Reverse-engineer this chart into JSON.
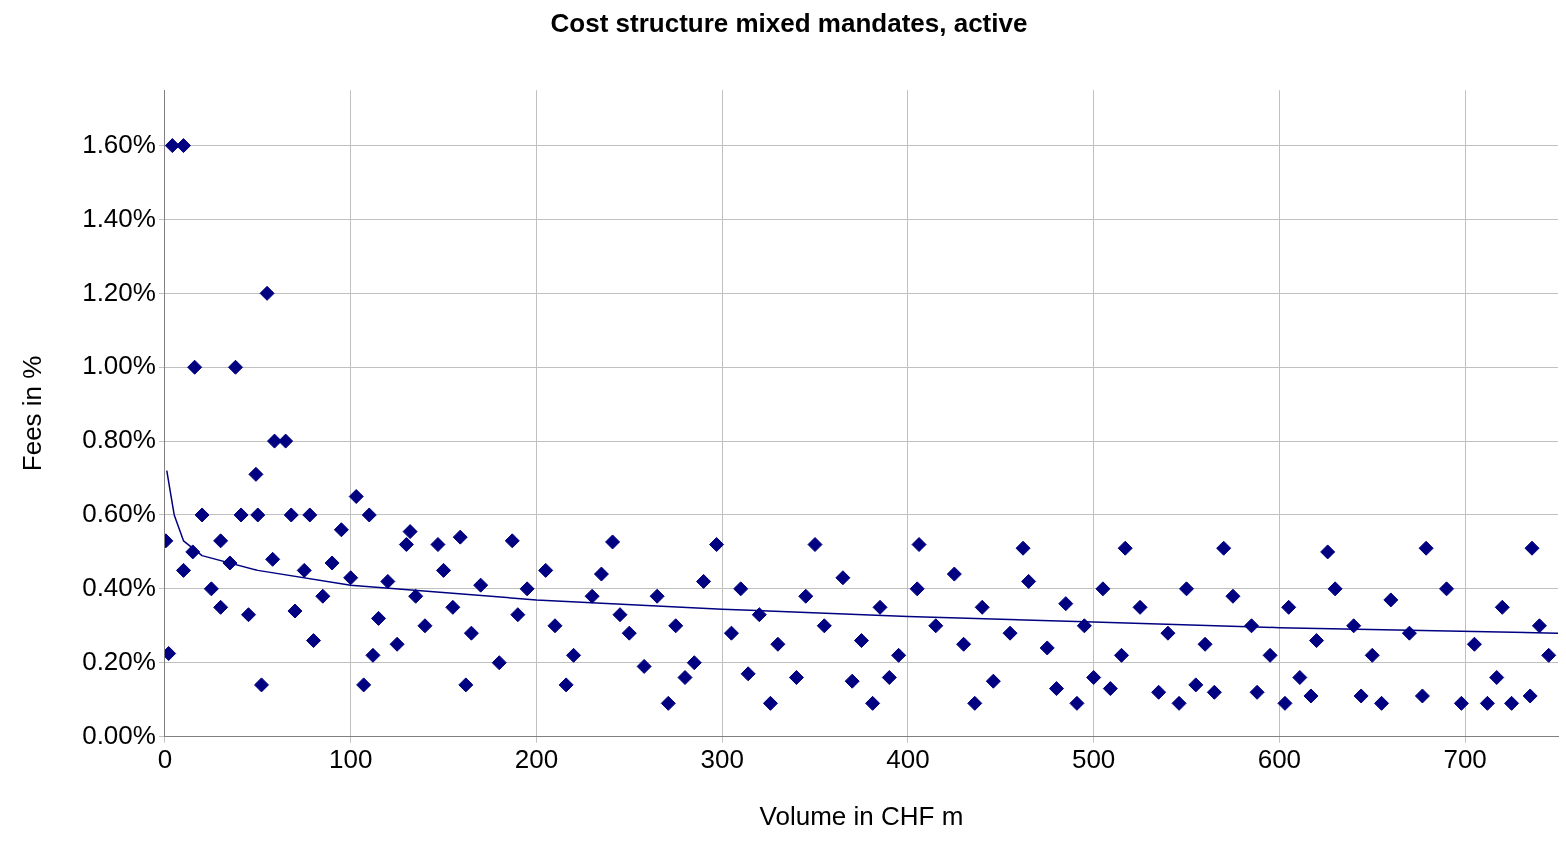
{
  "chart_data": {
    "type": "scatter",
    "title": "Cost structure mixed mandates, active",
    "xlabel": "Volume in CHF m",
    "ylabel": "Fees in %",
    "xlim": [
      0,
      750
    ],
    "xticks": [
      0,
      100,
      200,
      300,
      400,
      500,
      600,
      700
    ],
    "ylim": [
      0,
      1.75
    ],
    "yticks": [
      {
        "value": 0,
        "label": "0.00%"
      },
      {
        "value": 0.2,
        "label": "0.20%"
      },
      {
        "value": 0.4,
        "label": "0.40%"
      },
      {
        "value": 0.6,
        "label": "0.60%"
      },
      {
        "value": 0.8,
        "label": "0.80%"
      },
      {
        "value": 1.0,
        "label": "1.00%"
      },
      {
        "value": 1.2,
        "label": "1.20%"
      },
      {
        "value": 1.4,
        "label": "1.40%"
      },
      {
        "value": 1.6,
        "label": "1.60%"
      }
    ],
    "grid": true,
    "legend": false,
    "series": [
      {
        "type": "scatter",
        "color": "#000080",
        "marker": "diamond",
        "x": [
          4,
          10,
          16,
          38,
          55,
          59,
          65,
          49,
          103,
          0.5,
          2,
          52,
          107,
          162,
          271,
          326,
          381,
          436,
          491,
          546,
          603,
          655,
          698,
          712,
          725,
          132,
          159,
          187,
          241,
          297,
          350,
          406,
          462,
          517,
          570,
          626,
          679,
          736,
          216,
          280,
          314,
          340,
          370,
          390,
          446,
          480,
          500,
          509,
          535,
          555,
          565,
          588,
          611,
          617,
          644,
          677,
          717,
          735,
          20,
          41,
          50,
          68,
          78,
          110,
          30,
          95,
          130,
          147,
          10,
          15,
          25,
          30,
          35,
          45,
          58,
          70,
          75,
          80,
          85,
          90,
          100,
          112,
          115,
          120,
          125,
          135,
          140,
          150,
          155,
          165,
          170,
          180,
          190,
          195,
          205,
          210,
          220,
          230,
          235,
          245,
          250,
          258,
          265,
          275,
          285,
          290,
          305,
          310,
          320,
          330,
          345,
          355,
          365,
          375,
          385,
          395,
          405,
          415,
          425,
          430,
          440,
          455,
          465,
          475,
          485,
          495,
          505,
          515,
          525,
          540,
          550,
          560,
          575,
          585,
          595,
          605,
          620,
          630,
          640,
          650,
          660,
          670,
          690,
          705,
          720,
          740,
          745
        ],
        "values": [
          1.6,
          1.6,
          1.0,
          1.0,
          1.2,
          0.8,
          0.8,
          0.71,
          0.65,
          0.53,
          0.225,
          0.14,
          0.14,
          0.14,
          0.09,
          0.09,
          0.09,
          0.09,
          0.09,
          0.09,
          0.09,
          0.09,
          0.09,
          0.09,
          0.09,
          0.555,
          0.54,
          0.53,
          0.527,
          0.52,
          0.52,
          0.52,
          0.51,
          0.51,
          0.51,
          0.5,
          0.51,
          0.51,
          0.14,
          0.16,
          0.17,
          0.16,
          0.15,
          0.16,
          0.15,
          0.13,
          0.16,
          0.13,
          0.12,
          0.14,
          0.12,
          0.12,
          0.16,
          0.11,
          0.11,
          0.11,
          0.16,
          0.11,
          0.6,
          0.6,
          0.6,
          0.6,
          0.6,
          0.6,
          0.53,
          0.56,
          0.52,
          0.52,
          0.45,
          0.5,
          0.4,
          0.35,
          0.47,
          0.33,
          0.48,
          0.34,
          0.45,
          0.26,
          0.38,
          0.47,
          0.43,
          0.22,
          0.32,
          0.42,
          0.25,
          0.38,
          0.3,
          0.45,
          0.35,
          0.28,
          0.41,
          0.2,
          0.33,
          0.4,
          0.45,
          0.3,
          0.22,
          0.38,
          0.44,
          0.33,
          0.28,
          0.19,
          0.38,
          0.3,
          0.2,
          0.42,
          0.28,
          0.4,
          0.33,
          0.25,
          0.38,
          0.3,
          0.43,
          0.26,
          0.35,
          0.22,
          0.4,
          0.3,
          0.44,
          0.25,
          0.35,
          0.28,
          0.42,
          0.24,
          0.36,
          0.3,
          0.4,
          0.22,
          0.35,
          0.28,
          0.4,
          0.25,
          0.38,
          0.3,
          0.22,
          0.35,
          0.26,
          0.4,
          0.3,
          0.22,
          0.37,
          0.28,
          0.4,
          0.25,
          0.35,
          0.3,
          0.22
        ]
      },
      {
        "type": "line",
        "color": "#000080",
        "marker": "none",
        "line_style": "solid",
        "x": [
          1,
          5,
          10,
          20,
          50,
          100,
          200,
          300,
          400,
          500,
          600,
          750
        ],
        "values": [
          0.72,
          0.6,
          0.53,
          0.49,
          0.45,
          0.41,
          0.37,
          0.345,
          0.325,
          0.31,
          0.295,
          0.28
        ]
      }
    ]
  }
}
